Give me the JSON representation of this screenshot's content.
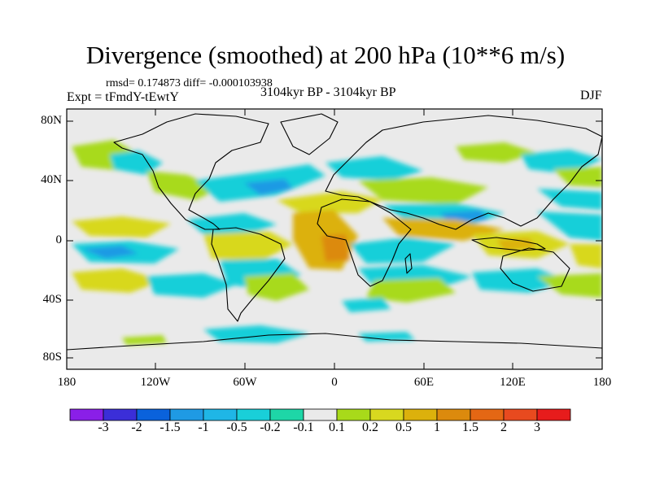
{
  "title": "Divergence (smoothed) at 200 hPa (10**6 m/s)",
  "stats": "rmsd= 0.174873 diff= -0.000103938",
  "experiment": "Expt = tFmdY-tEwtY",
  "period": "3104kyr BP - 3104kyr BP",
  "season": "DJF",
  "y_axis": {
    "ticks": [
      "80N",
      "40N",
      "0",
      "40S",
      "80S"
    ]
  },
  "x_axis": {
    "ticks": [
      "180",
      "120W",
      "60W",
      "0",
      "60E",
      "120E",
      "180"
    ]
  },
  "colorbar": {
    "labels": [
      "-3",
      "-2",
      "-1.5",
      "-1",
      "-0.5",
      "-0.2",
      "-0.1",
      "0.1",
      "0.2",
      "0.5",
      "1",
      "1.5",
      "2",
      "3"
    ],
    "colors": [
      "#8a1fe8",
      "#3b2ed8",
      "#0a62dc",
      "#1f9ae4",
      "#1fb6e6",
      "#19cfd9",
      "#1ed6a7",
      "#eaeaea",
      "#a8da1a",
      "#d8d81f",
      "#dcb10c",
      "#dc8a0d",
      "#e46714",
      "#e84a1f",
      "#e71c1c"
    ]
  },
  "palette": {
    "neutral": "#eaeaea"
  }
}
